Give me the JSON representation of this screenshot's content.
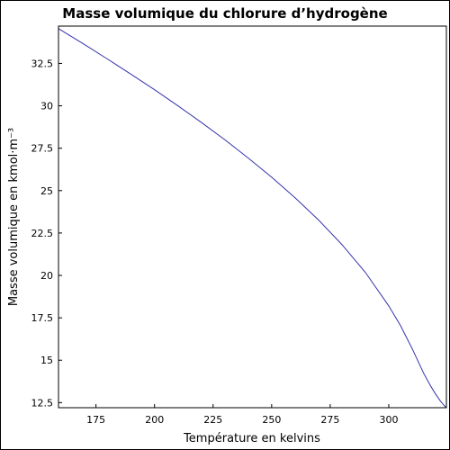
{
  "chart_data": {
    "type": "line",
    "title": "Masse volumique du chlorure d’hydrogène",
    "xlabel": "Température en kelvins",
    "ylabel": "Masse volumique en kmol·m⁻³",
    "xlim": [
      159.0,
      324.6
    ],
    "ylim": [
      12.2,
      34.7
    ],
    "xticks": [
      175,
      200,
      225,
      250,
      275,
      300
    ],
    "xtick_labels": [
      "175",
      "200",
      "225",
      "250",
      "275",
      "300"
    ],
    "yticks": [
      12.5,
      15,
      17.5,
      20,
      22.5,
      25,
      27.5,
      30,
      32.5
    ],
    "ytick_labels": [
      "12.5",
      "15",
      "17.5",
      "20",
      "22.5",
      "25",
      "27.5",
      "30",
      "32.5"
    ],
    "grid": false,
    "series": [
      {
        "color": "#3333aa",
        "x": [
          159.0,
          170.0,
          180.0,
          190.0,
          200.0,
          210.0,
          220.0,
          230.0,
          240.0,
          250.0,
          260.0,
          270.0,
          280.0,
          290.0,
          300.0,
          305.0,
          310.0,
          315.0,
          318.0,
          320.0,
          322.0,
          323.5,
          324.6
        ],
        "y": [
          34.55,
          33.62,
          32.75,
          31.86,
          30.95,
          30.0,
          29.02,
          28.0,
          26.92,
          25.79,
          24.58,
          23.27,
          21.82,
          20.18,
          18.2,
          17.04,
          15.68,
          14.2,
          13.45,
          13.0,
          12.6,
          12.35,
          12.2
        ]
      }
    ]
  }
}
